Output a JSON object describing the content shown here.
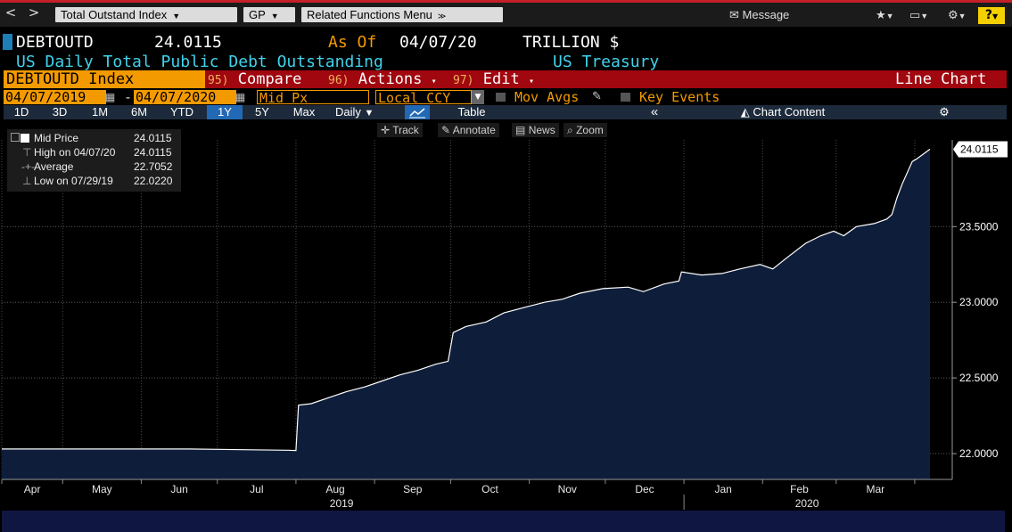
{
  "topbar": {
    "back_label": "<",
    "forward_label": ">",
    "index_dropdown": "Total Outstand Index",
    "gp_dropdown": "GP",
    "related_menu": "Related Functions Menu",
    "message_label": "Message",
    "help_label": "?"
  },
  "header": {
    "ticker": "DEBTOUTD",
    "last_value": "24.0115",
    "as_of_label": "As Of",
    "as_of_date": "04/07/20",
    "units": "TRILLION $",
    "description": "US Daily Total Public Debt Outstanding",
    "source": "US Treasury"
  },
  "commandbar": {
    "security": "DEBTOUTD Index",
    "compare_num": "95)",
    "compare_label": "Compare",
    "actions_num": "96)",
    "actions_label": "Actions",
    "edit_num": "97)",
    "edit_label": "Edit",
    "chart_type": "Line Chart"
  },
  "settings": {
    "start_date": "04/07/2019",
    "end_date": "04/07/2020",
    "dash": "-",
    "field": "Mid Px",
    "currency": "Local CCY",
    "mov_avgs": "Mov Avgs",
    "key_events": "Key Events"
  },
  "periods": {
    "buttons": [
      "1D",
      "3D",
      "1M",
      "6M",
      "YTD",
      "1Y",
      "5Y",
      "Max"
    ],
    "selected": "1Y",
    "frequency": "Daily",
    "table_label": "Table",
    "chart_content_label": "Chart Content"
  },
  "tools": {
    "track": "Track",
    "annotate": "Annotate",
    "news": "News",
    "zoom": "Zoom"
  },
  "legend": {
    "rows": [
      {
        "label": "Mid Price",
        "value": "24.0115"
      },
      {
        "label": "High on 04/07/20",
        "value": "24.0115"
      },
      {
        "label": "Average",
        "value": "22.7052"
      },
      {
        "label": "Low on 07/29/19",
        "value": "22.0220"
      }
    ]
  },
  "colors": {
    "accent_orange": "#f39a00",
    "command_red": "#a0070f",
    "header_blue": "#3fd3ec",
    "area_fill": "#0e1e3a",
    "line": "#ffffff"
  },
  "chart_data": {
    "type": "area",
    "title": "",
    "ylim": [
      21.82,
      24.1
    ],
    "yticks": [
      22.0,
      22.5,
      23.0,
      23.5
    ],
    "ytick_labels": [
      "22.0000",
      "22.5000",
      "23.0000",
      "23.5000"
    ],
    "last_label": "24.0115",
    "x_start": "2019-04-07",
    "x_end": "2020-04-07",
    "month_labels": [
      "Apr",
      "May",
      "Jun",
      "Jul",
      "Aug",
      "Sep",
      "Oct",
      "Nov",
      "Dec",
      "Jan",
      "Feb",
      "Mar"
    ],
    "year_labels": [
      "2019",
      "2020"
    ],
    "grid": true,
    "series": [
      {
        "values": [
          {
            "x": "2019-04-07",
            "y": 22.03
          },
          {
            "x": "2019-05-15",
            "y": 22.03
          },
          {
            "x": "2019-06-20",
            "y": 22.03
          },
          {
            "x": "2019-07-29",
            "y": 22.022
          },
          {
            "x": "2019-08-01",
            "y": 22.02
          },
          {
            "x": "2019-08-02",
            "y": 22.32
          },
          {
            "x": "2019-08-07",
            "y": 22.33
          },
          {
            "x": "2019-08-14",
            "y": 22.37
          },
          {
            "x": "2019-08-21",
            "y": 22.41
          },
          {
            "x": "2019-08-28",
            "y": 22.44
          },
          {
            "x": "2019-09-04",
            "y": 22.48
          },
          {
            "x": "2019-09-11",
            "y": 22.52
          },
          {
            "x": "2019-09-18",
            "y": 22.55
          },
          {
            "x": "2019-09-25",
            "y": 22.59
          },
          {
            "x": "2019-09-30",
            "y": 22.61
          },
          {
            "x": "2019-10-02",
            "y": 22.8
          },
          {
            "x": "2019-10-07",
            "y": 22.84
          },
          {
            "x": "2019-10-15",
            "y": 22.87
          },
          {
            "x": "2019-10-22",
            "y": 22.93
          },
          {
            "x": "2019-10-31",
            "y": 22.97
          },
          {
            "x": "2019-11-07",
            "y": 23.0
          },
          {
            "x": "2019-11-14",
            "y": 23.02
          },
          {
            "x": "2019-11-21",
            "y": 23.06
          },
          {
            "x": "2019-11-30",
            "y": 23.09
          },
          {
            "x": "2019-12-10",
            "y": 23.1
          },
          {
            "x": "2019-12-16",
            "y": 23.07
          },
          {
            "x": "2019-12-24",
            "y": 23.12
          },
          {
            "x": "2019-12-30",
            "y": 23.14
          },
          {
            "x": "2019-12-31",
            "y": 23.2
          },
          {
            "x": "2020-01-08",
            "y": 23.18
          },
          {
            "x": "2020-01-16",
            "y": 23.19
          },
          {
            "x": "2020-01-23",
            "y": 23.22
          },
          {
            "x": "2020-01-31",
            "y": 23.25
          },
          {
            "x": "2020-02-05",
            "y": 23.22
          },
          {
            "x": "2020-02-11",
            "y": 23.3
          },
          {
            "x": "2020-02-18",
            "y": 23.39
          },
          {
            "x": "2020-02-24",
            "y": 23.44
          },
          {
            "x": "2020-02-29",
            "y": 23.47
          },
          {
            "x": "2020-03-04",
            "y": 23.44
          },
          {
            "x": "2020-03-09",
            "y": 23.5
          },
          {
            "x": "2020-03-16",
            "y": 23.52
          },
          {
            "x": "2020-03-21",
            "y": 23.55
          },
          {
            "x": "2020-03-23",
            "y": 23.58
          },
          {
            "x": "2020-03-25",
            "y": 23.69
          },
          {
            "x": "2020-03-27",
            "y": 23.78
          },
          {
            "x": "2020-03-31",
            "y": 23.93
          },
          {
            "x": "2020-04-02",
            "y": 23.95
          },
          {
            "x": "2020-04-07",
            "y": 24.0115
          }
        ]
      }
    ]
  }
}
